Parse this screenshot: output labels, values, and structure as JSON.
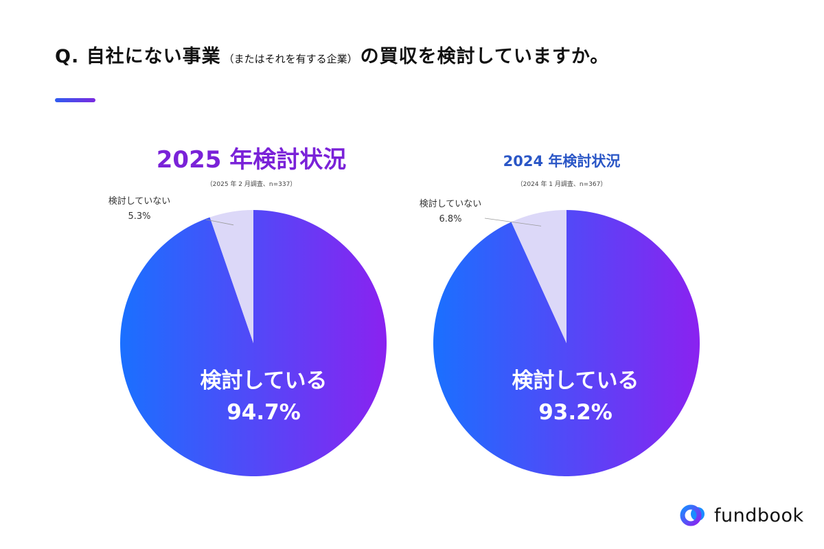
{
  "question": {
    "prefix": "Q. 自社にない事業",
    "note": "（またはそれを有する企業）",
    "suffix": "の買収を検討していますか。"
  },
  "colors": {
    "gradient_start": "#1a70ff",
    "gradient_end": "#8a22f0",
    "minor_slice": "#dcd8f8",
    "title_2025": "#7a22d8",
    "title_2024": "#2a56c6"
  },
  "chart_data": [
    {
      "type": "pie",
      "title": "2025 年検討状況",
      "subtitle": "（2025 年 2 月調査、n=337）",
      "slices": [
        {
          "label": "検討している",
          "value": 94.7,
          "value_label": "94.7%"
        },
        {
          "label": "検討していない",
          "value": 5.3,
          "value_label": "5.3%"
        }
      ]
    },
    {
      "type": "pie",
      "title": "2024 年検討状況",
      "subtitle": "（2024 年 1 月調査、n=367）",
      "slices": [
        {
          "label": "検討している",
          "value": 93.2,
          "value_label": "93.2%"
        },
        {
          "label": "検討していない",
          "value": 6.8,
          "value_label": "6.8%"
        }
      ]
    }
  ],
  "logo": {
    "text": "fundbook"
  }
}
